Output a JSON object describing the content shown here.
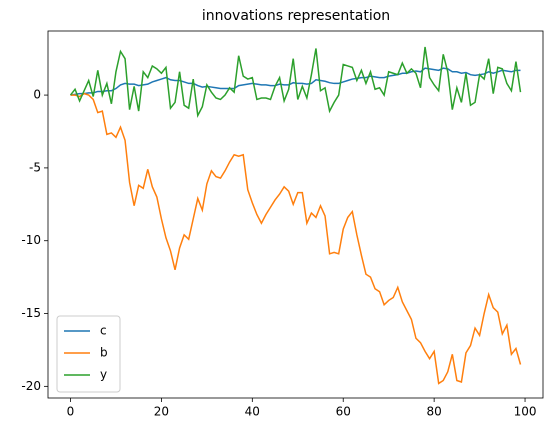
{
  "chart_data": {
    "type": "line",
    "title": "innovations representation",
    "x": [
      0,
      1,
      2,
      3,
      4,
      5,
      6,
      7,
      8,
      9,
      10,
      11,
      12,
      13,
      14,
      15,
      16,
      17,
      18,
      19,
      20,
      21,
      22,
      23,
      24,
      25,
      26,
      27,
      28,
      29,
      30,
      31,
      32,
      33,
      34,
      35,
      36,
      37,
      38,
      39,
      40,
      41,
      42,
      43,
      44,
      45,
      46,
      47,
      48,
      49,
      50,
      51,
      52,
      53,
      54,
      55,
      56,
      57,
      58,
      59,
      60,
      61,
      62,
      63,
      64,
      65,
      66,
      67,
      68,
      69,
      70,
      71,
      72,
      73,
      74,
      75,
      76,
      77,
      78,
      79,
      80,
      81,
      82,
      83,
      84,
      85,
      86,
      87,
      88,
      89,
      90,
      91,
      92,
      93,
      94,
      95,
      96,
      97,
      98,
      99
    ],
    "series": [
      {
        "name": "c",
        "color": "#1f77b4",
        "values": [
          0,
          0.05,
          0.1,
          0.1,
          0.15,
          0.15,
          0.25,
          0.25,
          0.3,
          0.3,
          0.45,
          0.7,
          0.8,
          0.75,
          0.75,
          0.65,
          0.7,
          0.75,
          0.9,
          1,
          1.1,
          1.2,
          1.05,
          1,
          1,
          0.9,
          0.8,
          0.8,
          0.65,
          0.55,
          0.6,
          0.55,
          0.5,
          0.45,
          0.45,
          0.45,
          0.45,
          0.65,
          0.7,
          0.75,
          0.8,
          0.75,
          0.7,
          0.7,
          0.65,
          0.65,
          0.75,
          0.7,
          0.7,
          0.85,
          0.8,
          0.8,
          0.75,
          0.8,
          1.05,
          1,
          0.95,
          0.85,
          0.8,
          0.8,
          0.9,
          1,
          1.1,
          1.15,
          1.2,
          1.2,
          1.3,
          1.25,
          1.2,
          1.2,
          1.3,
          1.35,
          1.4,
          1.5,
          1.5,
          1.6,
          1.65,
          1.6,
          1.85,
          1.8,
          1.75,
          1.7,
          1.85,
          1.8,
          1.6,
          1.6,
          1.5,
          1.55,
          1.4,
          1.35,
          1.4,
          1.45,
          1.6,
          1.5,
          1.6,
          1.7,
          1.65,
          1.6,
          1.7,
          1.7
        ]
      },
      {
        "name": "b",
        "color": "#ff7f0e",
        "values": [
          0,
          0,
          -0.1,
          0.1,
          0,
          -0.3,
          -1.2,
          -1.1,
          -2.7,
          -2.6,
          -2.9,
          -2.2,
          -3.1,
          -6,
          -7.6,
          -6.2,
          -6.4,
          -5.1,
          -6.3,
          -7,
          -8.5,
          -9.8,
          -10.7,
          -12,
          -10.5,
          -9.6,
          -9.9,
          -8.5,
          -7.1,
          -7.9,
          -6.1,
          -5.2,
          -5.6,
          -5.7,
          -5.2,
          -4.6,
          -4.1,
          -4.2,
          -4.1,
          -6.5,
          -7.4,
          -8.2,
          -8.8,
          -8.2,
          -7.7,
          -7.2,
          -6.8,
          -6.3,
          -6.6,
          -7.5,
          -6.7,
          -6.7,
          -8.8,
          -8.1,
          -8.4,
          -7.6,
          -8.3,
          -10.9,
          -10.8,
          -10.9,
          -9.2,
          -8.4,
          -8,
          -9.6,
          -11,
          -12.3,
          -12.5,
          -13.3,
          -13.5,
          -14.4,
          -14.1,
          -13.9,
          -13.2,
          -14.2,
          -14.8,
          -15.4,
          -16.7,
          -17,
          -17.6,
          -18.1,
          -17.6,
          -19.8,
          -19.6,
          -19,
          -17.8,
          -19.6,
          -19.7,
          -17.7,
          -17.2,
          -16,
          -16.5,
          -15,
          -13.7,
          -14.6,
          -14.9,
          -16.4,
          -15.8,
          -17.8,
          -17.4,
          -18.5
        ]
      },
      {
        "name": "y",
        "color": "#2ca02c",
        "values": [
          0,
          0.4,
          -0.4,
          0.3,
          1,
          -0.1,
          1.7,
          0,
          0.8,
          -0.6,
          1.6,
          3,
          2.5,
          -1,
          0.6,
          -1.1,
          1.6,
          1.2,
          2,
          1.8,
          1.5,
          1.9,
          -0.9,
          -0.5,
          1.6,
          -0.7,
          -0.9,
          1.1,
          -1.4,
          -0.8,
          0.7,
          0.2,
          -0.2,
          -0.3,
          0,
          0.5,
          0.2,
          2.7,
          1.3,
          1.1,
          1.2,
          -0.3,
          -0.2,
          -0.2,
          -0.3,
          0.6,
          1.2,
          -0.4,
          0.4,
          2.5,
          -0.3,
          0.6,
          -0.2,
          1.4,
          3.2,
          0.3,
          0.5,
          -1.1,
          -0.5,
          0,
          2.1,
          2,
          1.9,
          1,
          1.7,
          0.8,
          1.6,
          0.4,
          0.5,
          0,
          1.6,
          1.5,
          1.4,
          2.2,
          1.5,
          1.8,
          1.5,
          0.5,
          3.3,
          1.2,
          0.7,
          0.3,
          2.8,
          1.6,
          -1,
          0.5,
          -0.5,
          1.5,
          -0.7,
          -0.5,
          1.4,
          1.1,
          2.5,
          0.1,
          1.9,
          1.8,
          0.8,
          0.3,
          2.3,
          0.2
        ]
      }
    ],
    "xlim": [
      -4.95,
      103.95
    ],
    "xticks": [
      0,
      20,
      40,
      60,
      80,
      100
    ],
    "ylim": [
      -20.8,
      4.4
    ],
    "yticks": [
      0,
      -5,
      -10,
      -15,
      -20
    ],
    "legend": "lower left",
    "grid": false
  }
}
